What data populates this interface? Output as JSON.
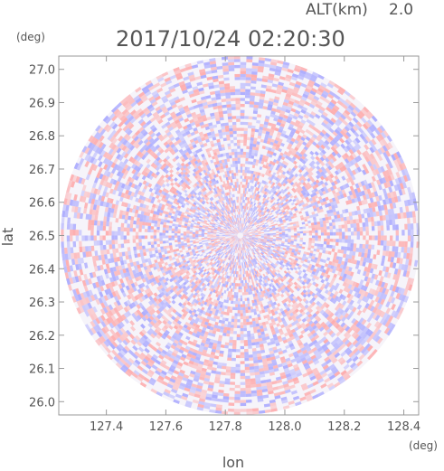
{
  "header": {
    "altitude_label": "ALT(km)",
    "altitude_value": "2.0",
    "timestamp": "2017/10/24 02:20:30"
  },
  "chart_data": {
    "type": "heatmap",
    "title": "2017/10/24 02:20:30",
    "xlabel": "lon",
    "ylabel": "lat",
    "x_unit": "(deg)",
    "y_unit": "(deg)",
    "xlim": [
      127.24,
      128.45
    ],
    "ylim": [
      25.96,
      27.04
    ],
    "x_ticks": [
      "127.4",
      "127.6",
      "127.8",
      "128.0",
      "128.2",
      "128.4"
    ],
    "y_ticks": [
      "27.0",
      "26.9",
      "26.8",
      "26.7",
      "26.6",
      "26.5",
      "26.4",
      "26.3",
      "26.2",
      "26.1",
      "26.0"
    ],
    "data_center": [
      127.85,
      26.5
    ],
    "data_radius_deg_lat": 0.54,
    "colors": {
      "positive": "#ff9c9c",
      "negative": "#9c9cff",
      "neutral": "#ffffff",
      "frame": "#999999",
      "text": "#555555"
    }
  }
}
